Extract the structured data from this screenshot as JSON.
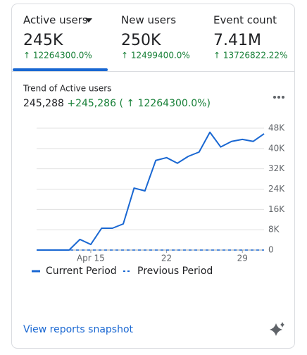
{
  "tabs": [
    {
      "label": "Active users",
      "value": "245K",
      "change": "↑ 12264300.0%"
    },
    {
      "label": "New users",
      "value": "250K",
      "change": "↑ 12499400.0%"
    },
    {
      "label": "Event count",
      "value": "7.41M",
      "change": "↑ 13726822.22%"
    }
  ],
  "chart_data": {
    "type": "line",
    "title": "Trend of Active users",
    "subtitle": {
      "total": "245,288",
      "delta": "+245,286",
      "percent": "( ↑ 12264300.0%)"
    },
    "categories": [
      null,
      null,
      null,
      null,
      null,
      "Apr 15",
      null,
      null,
      null,
      null,
      null,
      null,
      "22",
      null,
      null,
      null,
      null,
      null,
      null,
      "29",
      null,
      null
    ],
    "series": [
      {
        "name": "Current Period",
        "color": "#1967d2",
        "dashed": false,
        "values": [
          0,
          0,
          0,
          0,
          4200,
          2200,
          8600,
          8600,
          10300,
          24400,
          23300,
          35300,
          36400,
          34200,
          36900,
          38600,
          46400,
          40600,
          42800,
          43600,
          42800,
          45800
        ]
      },
      {
        "name": "Previous Period",
        "color": "#1967d2",
        "dashed": true,
        "values": [
          0,
          0,
          0,
          0,
          0,
          0,
          0,
          0,
          0,
          0,
          0,
          0,
          0,
          0,
          0,
          0,
          0,
          0,
          0,
          0,
          0,
          0
        ]
      }
    ],
    "ylim": [
      0,
      48000
    ],
    "yticks": [
      0,
      {
        "value": 8000,
        "label": "8K"
      },
      {
        "value": 16000,
        "label": "16K"
      },
      {
        "value": 24000,
        "label": "24K"
      },
      {
        "value": 32000,
        "label": "32K"
      },
      {
        "value": 40000,
        "label": "40K"
      },
      {
        "value": 48000,
        "label": "48K"
      }
    ],
    "grid": true
  },
  "link": "View reports snapshot"
}
